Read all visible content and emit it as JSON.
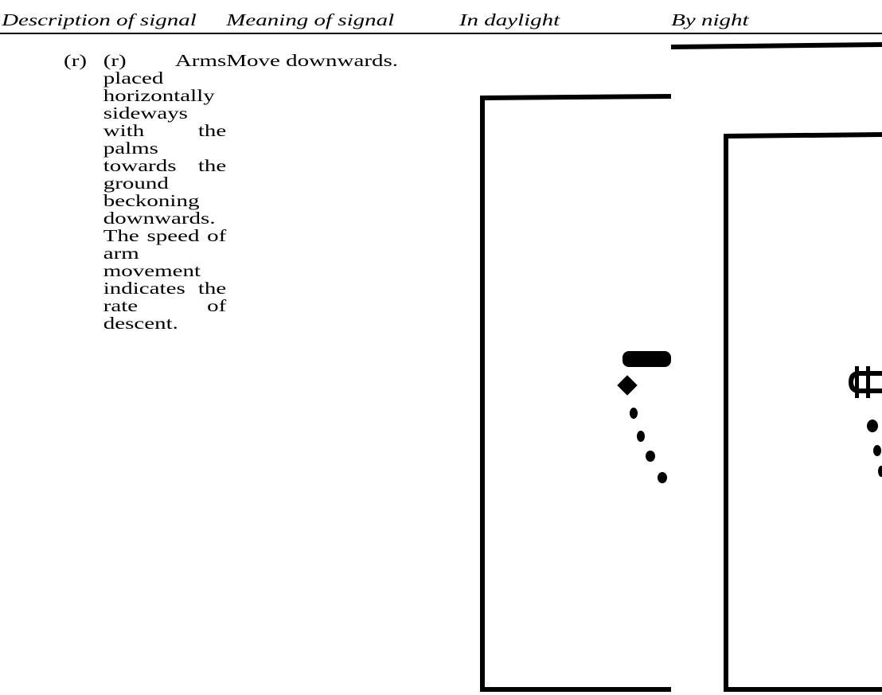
{
  "header": {
    "columns": [
      "Description of signal",
      "Meaning of signal",
      "In daylight",
      "By night"
    ]
  },
  "rows": [
    {
      "label": "(r)",
      "description": "(r) Arms placed horizontally sideways with the palms towards the ground beckoning downwards. The speed of arm movement indicates the rate of descent.",
      "meaning": "Move downwards."
    }
  ]
}
